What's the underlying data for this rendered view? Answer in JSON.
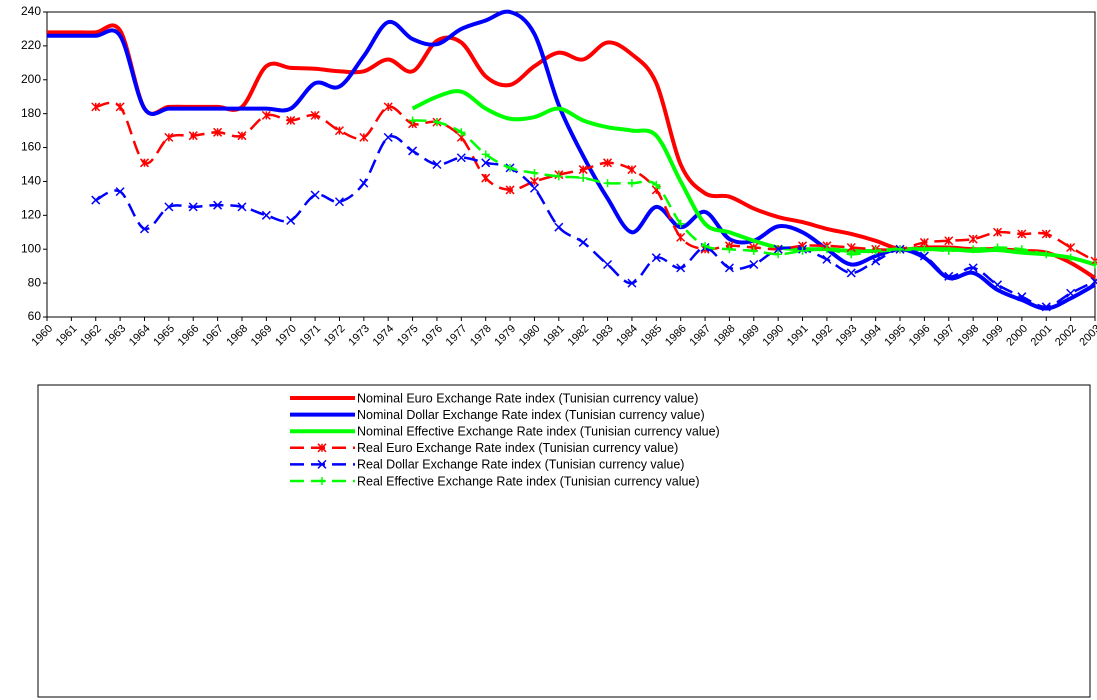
{
  "chart_data": {
    "type": "line",
    "categories": [
      "1960",
      "1961",
      "1962",
      "1963",
      "1964",
      "1965",
      "1966",
      "1967",
      "1968",
      "1969",
      "1970",
      "1971",
      "1972",
      "1973",
      "1974",
      "1975",
      "1976",
      "1977",
      "1978",
      "1979",
      "1980",
      "1981",
      "1982",
      "1983",
      "1984",
      "1985",
      "1986",
      "1987",
      "1988",
      "1989",
      "1990",
      "1991",
      "1992",
      "1993",
      "1994",
      "1995",
      "1996",
      "1997",
      "1998",
      "1999",
      "2000",
      "2001",
      "2002",
      "2003"
    ],
    "series": [
      {
        "name": "Nominal Euro Exchange Rate index (Tunisian currency value)",
        "color": "#ff0000",
        "dash": false,
        "marker": "none",
        "values": [
          228,
          228,
          228,
          229,
          183,
          184,
          184,
          184,
          184,
          208,
          207,
          206.5,
          205,
          205,
          212,
          205,
          223,
          222,
          202,
          197,
          208,
          216,
          212,
          222,
          215,
          198,
          150,
          133,
          131,
          124,
          119,
          116,
          112,
          109,
          105,
          100,
          101,
          101,
          100,
          100,
          99,
          98,
          92,
          83
        ]
      },
      {
        "name": "Nominal Dollar Exchange Rate index (Tunisian currency value)",
        "color": "#0000ff",
        "dash": false,
        "marker": "none",
        "values": [
          226,
          226,
          226,
          226,
          183,
          183,
          183,
          183,
          183,
          183,
          183,
          198,
          196,
          214,
          234,
          224,
          221,
          230,
          235,
          240,
          227,
          185,
          155,
          130,
          110,
          125,
          113,
          122,
          106,
          105,
          113.5,
          110,
          100,
          91,
          96,
          100,
          95,
          83,
          86,
          76,
          70,
          65,
          71,
          79
        ]
      },
      {
        "name": "Nominal Effective Exchange Rate index (Tunisian currency value)",
        "color": "#00ff00",
        "dash": false,
        "marker": "none",
        "values": [
          null,
          null,
          null,
          null,
          null,
          null,
          null,
          null,
          null,
          null,
          null,
          null,
          null,
          null,
          null,
          183,
          190,
          193,
          183,
          177,
          178,
          183,
          176,
          172,
          170,
          167,
          140,
          115,
          110,
          105,
          101,
          100,
          100,
          99,
          99,
          100,
          100,
          100,
          99,
          99.5,
          98,
          97,
          95,
          91
        ]
      },
      {
        "name": "Real Euro Exchange Rate index (Tunisian currency value)",
        "color": "#ff0000",
        "dash": true,
        "marker": "star",
        "values": [
          null,
          null,
          184,
          184,
          151,
          166,
          167,
          169,
          167,
          179,
          176,
          179,
          170,
          166,
          184,
          174,
          175,
          166,
          142,
          135,
          140,
          144,
          147,
          151,
          147,
          135,
          107,
          100,
          102,
          101,
          100,
          102,
          102,
          101,
          100,
          100,
          104,
          105,
          106,
          110,
          109,
          109,
          101,
          93
        ]
      },
      {
        "name": "Real Dollar Exchange Rate index (Tunisian currency value)",
        "color": "#0000ff",
        "dash": true,
        "marker": "x",
        "values": [
          null,
          null,
          129,
          134,
          112,
          125,
          125,
          126,
          125,
          120,
          117,
          132,
          128,
          139,
          166,
          158,
          150,
          154,
          151,
          148,
          136,
          113,
          104,
          91,
          80,
          95,
          89,
          101,
          89,
          91,
          100,
          100,
          94,
          86,
          93,
          100,
          96,
          84,
          89,
          79,
          72,
          66,
          74,
          81
        ]
      },
      {
        "name": "Real Effective Exchange Rate index (Tunisian currency value)",
        "color": "#00ff00",
        "dash": true,
        "marker": "plus",
        "values": [
          null,
          null,
          null,
          null,
          null,
          null,
          null,
          null,
          null,
          null,
          null,
          null,
          null,
          null,
          null,
          176,
          175,
          169,
          156,
          148,
          145,
          143,
          142,
          139,
          139,
          138,
          115,
          102,
          100,
          99,
          97,
          99,
          100,
          97,
          99,
          100,
          100,
          99,
          100,
          101,
          100,
          97,
          95,
          91
        ]
      }
    ],
    "ylim": [
      60,
      240
    ],
    "yticks": [
      60,
      80,
      100,
      120,
      140,
      160,
      180,
      200,
      220,
      240
    ],
    "grid": false,
    "legend": "bottom"
  }
}
